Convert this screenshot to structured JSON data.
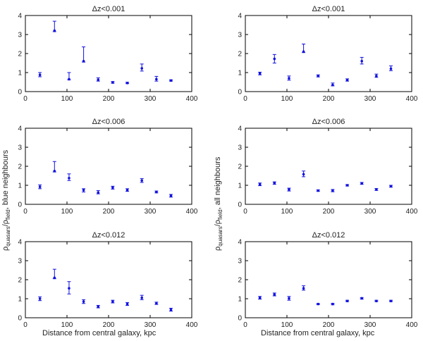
{
  "chart_data": [
    {
      "type": "scatter",
      "title": "Δz<0.001",
      "xlim": [
        0,
        400
      ],
      "ylim": [
        0,
        4
      ],
      "xticks": [
        0,
        100,
        200,
        300,
        400
      ],
      "yticks": [
        0,
        1,
        2,
        3,
        4
      ],
      "points": [
        {
          "x": 35,
          "y": 0.88,
          "lo": 0.78,
          "hi": 1.0
        },
        {
          "x": 70,
          "y": 3.2,
          "lo": 3.15,
          "hi": 3.7
        },
        {
          "x": 105,
          "y": 0.65,
          "lo": 0.62,
          "hi": 1.0
        },
        {
          "x": 140,
          "y": 1.6,
          "lo": 1.55,
          "hi": 2.35
        },
        {
          "x": 175,
          "y": 0.62,
          "lo": 0.55,
          "hi": 0.72
        },
        {
          "x": 210,
          "y": 0.48,
          "lo": 0.44,
          "hi": 0.53
        },
        {
          "x": 245,
          "y": 0.45,
          "lo": 0.42,
          "hi": 0.49
        },
        {
          "x": 280,
          "y": 1.22,
          "lo": 1.08,
          "hi": 1.45
        },
        {
          "x": 315,
          "y": 0.65,
          "lo": 0.55,
          "hi": 0.8
        },
        {
          "x": 350,
          "y": 0.58,
          "lo": 0.55,
          "hi": 0.62
        }
      ]
    },
    {
      "type": "scatter",
      "title": "Δz<0.001",
      "xlim": [
        0,
        400
      ],
      "ylim": [
        0,
        4
      ],
      "xticks": [
        0,
        100,
        200,
        300,
        400
      ],
      "yticks": [
        0,
        1,
        2,
        3,
        4
      ],
      "points": [
        {
          "x": 35,
          "y": 0.95,
          "lo": 0.88,
          "hi": 1.02
        },
        {
          "x": 70,
          "y": 1.72,
          "lo": 1.5,
          "hi": 1.95
        },
        {
          "x": 105,
          "y": 0.7,
          "lo": 0.6,
          "hi": 0.82
        },
        {
          "x": 140,
          "y": 2.1,
          "lo": 2.05,
          "hi": 2.5
        },
        {
          "x": 175,
          "y": 0.82,
          "lo": 0.77,
          "hi": 0.88
        },
        {
          "x": 210,
          "y": 0.35,
          "lo": 0.3,
          "hi": 0.45
        },
        {
          "x": 245,
          "y": 0.6,
          "lo": 0.55,
          "hi": 0.67
        },
        {
          "x": 280,
          "y": 1.6,
          "lo": 1.45,
          "hi": 1.8
        },
        {
          "x": 315,
          "y": 0.82,
          "lo": 0.75,
          "hi": 0.92
        },
        {
          "x": 350,
          "y": 1.2,
          "lo": 1.1,
          "hi": 1.35
        }
      ]
    },
    {
      "type": "scatter",
      "title": "Δz<0.006",
      "xlim": [
        0,
        400
      ],
      "ylim": [
        0,
        4
      ],
      "xticks": [
        0,
        100,
        200,
        300,
        400
      ],
      "yticks": [
        0,
        1,
        2,
        3,
        4
      ],
      "points": [
        {
          "x": 35,
          "y": 0.92,
          "lo": 0.82,
          "hi": 1.02
        },
        {
          "x": 70,
          "y": 1.75,
          "lo": 1.7,
          "hi": 2.25
        },
        {
          "x": 105,
          "y": 1.38,
          "lo": 1.25,
          "hi": 1.6
        },
        {
          "x": 140,
          "y": 0.75,
          "lo": 0.65,
          "hi": 0.82
        },
        {
          "x": 175,
          "y": 0.62,
          "lo": 0.55,
          "hi": 0.72
        },
        {
          "x": 210,
          "y": 0.88,
          "lo": 0.8,
          "hi": 0.95
        },
        {
          "x": 245,
          "y": 0.75,
          "lo": 0.68,
          "hi": 0.82
        },
        {
          "x": 280,
          "y": 1.25,
          "lo": 1.15,
          "hi": 1.35
        },
        {
          "x": 315,
          "y": 0.65,
          "lo": 0.6,
          "hi": 0.7
        },
        {
          "x": 350,
          "y": 0.45,
          "lo": 0.38,
          "hi": 0.52
        }
      ]
    },
    {
      "type": "scatter",
      "title": "Δz<0.006",
      "xlim": [
        0,
        400
      ],
      "ylim": [
        0,
        4
      ],
      "xticks": [
        0,
        100,
        200,
        300,
        400
      ],
      "yticks": [
        0,
        1,
        2,
        3,
        4
      ],
      "points": [
        {
          "x": 35,
          "y": 1.05,
          "lo": 0.98,
          "hi": 1.12
        },
        {
          "x": 70,
          "y": 1.12,
          "lo": 1.05,
          "hi": 1.18
        },
        {
          "x": 105,
          "y": 0.78,
          "lo": 0.7,
          "hi": 0.85
        },
        {
          "x": 140,
          "y": 1.58,
          "lo": 1.45,
          "hi": 1.75
        },
        {
          "x": 175,
          "y": 0.72,
          "lo": 0.68,
          "hi": 0.76
        },
        {
          "x": 210,
          "y": 0.72,
          "lo": 0.66,
          "hi": 0.78
        },
        {
          "x": 245,
          "y": 1.0,
          "lo": 0.96,
          "hi": 1.04
        },
        {
          "x": 280,
          "y": 1.1,
          "lo": 1.05,
          "hi": 1.15
        },
        {
          "x": 315,
          "y": 0.78,
          "lo": 0.73,
          "hi": 0.83
        },
        {
          "x": 350,
          "y": 0.95,
          "lo": 0.9,
          "hi": 1.0
        }
      ]
    },
    {
      "type": "scatter",
      "title": "Δz<0.012",
      "xlim": [
        0,
        400
      ],
      "ylim": [
        0,
        4
      ],
      "xticks": [
        0,
        100,
        200,
        300,
        400
      ],
      "yticks": [
        0,
        1,
        2,
        3,
        4
      ],
      "points": [
        {
          "x": 35,
          "y": 1.0,
          "lo": 0.9,
          "hi": 1.1
        },
        {
          "x": 70,
          "y": 2.1,
          "lo": 2.05,
          "hi": 2.55
        },
        {
          "x": 105,
          "y": 1.55,
          "lo": 1.25,
          "hi": 1.9
        },
        {
          "x": 140,
          "y": 0.85,
          "lo": 0.75,
          "hi": 0.95
        },
        {
          "x": 175,
          "y": 0.58,
          "lo": 0.52,
          "hi": 0.65
        },
        {
          "x": 210,
          "y": 0.85,
          "lo": 0.78,
          "hi": 0.92
        },
        {
          "x": 245,
          "y": 0.72,
          "lo": 0.65,
          "hi": 0.8
        },
        {
          "x": 280,
          "y": 1.05,
          "lo": 0.95,
          "hi": 1.18
        },
        {
          "x": 315,
          "y": 0.75,
          "lo": 0.7,
          "hi": 0.82
        },
        {
          "x": 350,
          "y": 0.42,
          "lo": 0.35,
          "hi": 0.5
        }
      ]
    },
    {
      "type": "scatter",
      "title": "Δz<0.012",
      "xlim": [
        0,
        400
      ],
      "ylim": [
        0,
        4
      ],
      "xticks": [
        0,
        100,
        200,
        300,
        400
      ],
      "yticks": [
        0,
        1,
        2,
        3,
        4
      ],
      "points": [
        {
          "x": 35,
          "y": 1.05,
          "lo": 0.98,
          "hi": 1.12
        },
        {
          "x": 70,
          "y": 1.22,
          "lo": 1.15,
          "hi": 1.3
        },
        {
          "x": 105,
          "y": 1.02,
          "lo": 0.92,
          "hi": 1.12
        },
        {
          "x": 140,
          "y": 1.55,
          "lo": 1.45,
          "hi": 1.68
        },
        {
          "x": 175,
          "y": 0.72,
          "lo": 0.69,
          "hi": 0.75
        },
        {
          "x": 210,
          "y": 0.72,
          "lo": 0.68,
          "hi": 0.76
        },
        {
          "x": 245,
          "y": 0.88,
          "lo": 0.85,
          "hi": 0.92
        },
        {
          "x": 280,
          "y": 1.02,
          "lo": 0.98,
          "hi": 1.06
        },
        {
          "x": 315,
          "y": 0.88,
          "lo": 0.85,
          "hi": 0.92
        },
        {
          "x": 350,
          "y": 0.88,
          "lo": 0.85,
          "hi": 0.92
        }
      ]
    }
  ],
  "labels": {
    "xlabel_left": "Distance from central galaxy, kpc",
    "xlabel_right": "Distance from central galaxy, kpc",
    "ylabel_left": {
      "rho": "ρ",
      "sub1": "quasars",
      "slash": "/ρ",
      "sub2": "field",
      "tail": ", blue neighbours"
    },
    "ylabel_right": {
      "rho": "ρ",
      "sub1": "quasars",
      "slash": "/ρ",
      "sub2": "field",
      "tail": ", all neighbours"
    }
  },
  "colors": {
    "marker": "#1010e0",
    "axes": "#000000",
    "text": "#222222"
  }
}
